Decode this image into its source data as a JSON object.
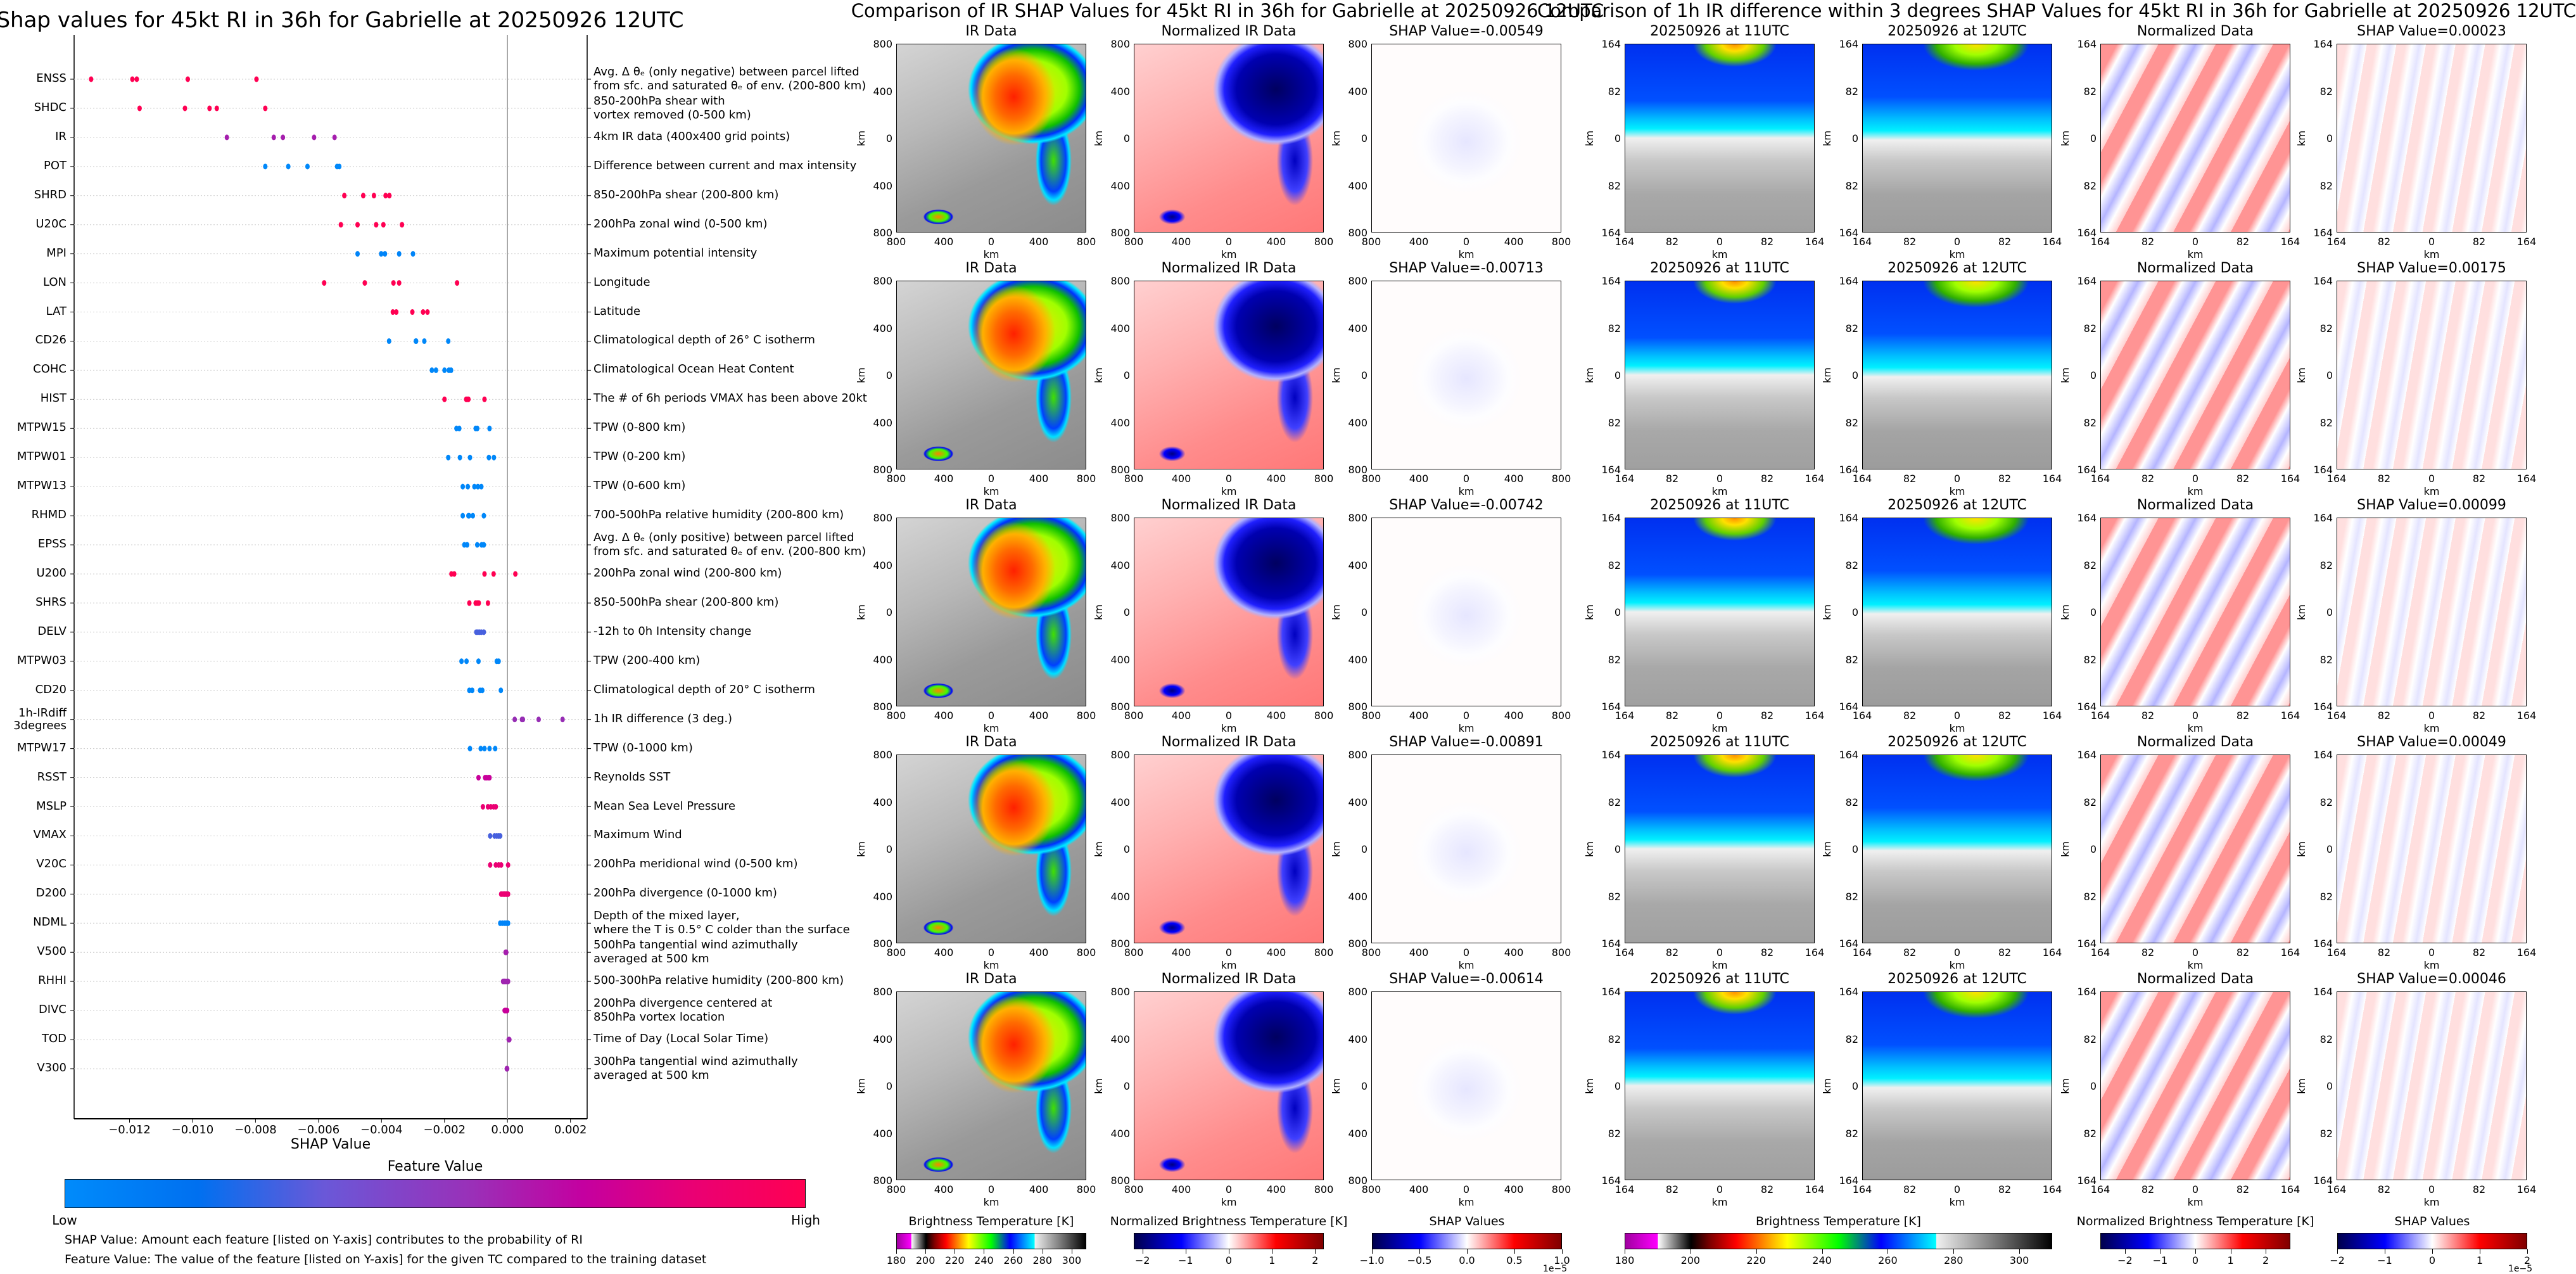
{
  "left": {
    "title": "Shap values for 45kt RI in 36h for Gabrielle at 20250926 12UTC",
    "xlabel": "SHAP Value",
    "xticks": [
      -0.012,
      -0.01,
      -0.008,
      -0.006,
      -0.004,
      -0.002,
      0.0,
      0.002
    ],
    "xtick_labels": [
      "−0.012",
      "−0.010",
      "−0.008",
      "−0.006",
      "−0.004",
      "−0.002",
      "0.000",
      "0.002"
    ],
    "xlim": [
      -0.01376,
      0.00253
    ],
    "features": [
      {
        "name": "ENSS",
        "desc": "Avg. Δ θₑ (only negative) between parcel lifted\nfrom sfc. and saturated θₑ of env. (200-800 km)",
        "fv": 1.0,
        "values": [
          -0.01322,
          -0.01191,
          -0.01177,
          -0.01015,
          -0.00797
        ]
      },
      {
        "name": "SHDC",
        "desc": "850-200hPa shear with\nvortex removed (0-500 km)",
        "fv": 1.0,
        "values": [
          -0.01168,
          -0.01024,
          -0.00946,
          -0.00923,
          -0.00769
        ]
      },
      {
        "name": "IR",
        "desc": "4km IR data (400x400 grid points)",
        "fv": 0.6,
        "values": [
          -0.00891,
          -0.00742,
          -0.00713,
          -0.00614,
          -0.00549
        ]
      },
      {
        "name": "POT",
        "desc": "Difference between current and max intensity",
        "fv": 0.02,
        "values": [
          -0.00769,
          -0.00696,
          -0.00635,
          -0.00541,
          -0.00534
        ]
      },
      {
        "name": "SHRD",
        "desc": "850-200hPa shear (200-800 km)",
        "fv": 1.0,
        "values": [
          -0.00518,
          -0.00458,
          -0.00424,
          -0.00387,
          -0.00375
        ]
      },
      {
        "name": "U20C",
        "desc": "200hPa zonal wind (0-500 km)",
        "fv": 1.0,
        "values": [
          -0.00529,
          -0.00476,
          -0.00417,
          -0.00394,
          -0.00335
        ]
      },
      {
        "name": "MPI",
        "desc": "Maximum potential intensity",
        "fv": 0.05,
        "values": [
          -0.00476,
          -0.00401,
          -0.00389,
          -0.00344,
          -0.003
        ]
      },
      {
        "name": "LON",
        "desc": "Longitude",
        "fv": 1.0,
        "values": [
          -0.00582,
          -0.00453,
          -0.00362,
          -0.00344,
          -0.0016
        ]
      },
      {
        "name": "LAT",
        "desc": "Latitude",
        "fv": 1.0,
        "values": [
          -0.00364,
          -0.00353,
          -0.00302,
          -0.00268,
          -0.00254
        ]
      },
      {
        "name": "CD26",
        "desc": "Climatological depth of 26° C isotherm",
        "fv": 0.03,
        "values": [
          -0.00376,
          -0.00291,
          -0.0029,
          -0.00264,
          -0.00188
        ]
      },
      {
        "name": "COHC",
        "desc": "Climatological Ocean Heat Content",
        "fv": 0.03,
        "values": [
          -0.0024,
          -0.00227,
          -0.002,
          -0.00186,
          -0.00179
        ]
      },
      {
        "name": "HIST",
        "desc": "The # of 6h periods VMAX has been above 20kt",
        "fv": 1.0,
        "values": [
          -0.002,
          -0.00131,
          -0.00128,
          -0.00124,
          -0.00073
        ]
      },
      {
        "name": "MTPW15",
        "desc": "TPW (0-800 km)",
        "fv": 0.03,
        "values": [
          -0.00162,
          -0.00153,
          -0.00101,
          -0.00096,
          -0.00057
        ]
      },
      {
        "name": "MTPW01",
        "desc": "TPW (0-200 km)",
        "fv": 0.03,
        "values": [
          -0.00188,
          -0.00151,
          -0.00119,
          -0.00059,
          -0.00043
        ]
      },
      {
        "name": "MTPW13",
        "desc": "TPW (0-600 km)",
        "fv": 0.03,
        "values": [
          -0.00142,
          -0.00126,
          -0.00105,
          -0.00094,
          -0.00083
        ]
      },
      {
        "name": "RHMD",
        "desc": "700-500hPa relative humidity (200-800 km)",
        "fv": 0.03,
        "values": [
          -0.00142,
          -0.00124,
          -0.00122,
          -0.0011,
          -0.00075
        ]
      },
      {
        "name": "EPSS",
        "desc": "Avg. Δ θₑ (only positive) between parcel lifted\nfrom sfc. and saturated θₑ of env. (200-800 km)",
        "fv": 0.03,
        "values": [
          -0.00137,
          -0.00128,
          -0.00096,
          -0.00082,
          -0.00075
        ]
      },
      {
        "name": "U200",
        "desc": "200hPa zonal wind (200-800 km)",
        "fv": 1.0,
        "values": [
          -0.00178,
          -0.00169,
          -0.00073,
          -0.00044,
          0.00025
        ]
      },
      {
        "name": "SHRS",
        "desc": "850-500hPa shear (200-800 km)",
        "fv": 1.0,
        "values": [
          -0.00121,
          -0.00101,
          -0.00096,
          -0.00091,
          -0.00062
        ]
      },
      {
        "name": "DELV",
        "desc": "-12h to 0h Intensity change",
        "fv": 0.3,
        "values": [
          -0.00099,
          -0.00094,
          -0.00089,
          -0.00083,
          -0.00075
        ]
      },
      {
        "name": "MTPW03",
        "desc": "TPW (200-400 km)",
        "fv": 0.03,
        "values": [
          -0.00146,
          -0.0013,
          -0.00092,
          -0.00034,
          -0.00028
        ]
      },
      {
        "name": "CD20",
        "desc": "Climatological depth of 20° C isotherm",
        "fv": 0.03,
        "values": [
          -0.00121,
          -0.00112,
          -0.00087,
          -0.0008,
          -0.00021
        ]
      },
      {
        "name": "1h-IRdiff\n3degrees",
        "desc": "1h IR difference (3 deg.)",
        "fv": 0.55,
        "values": [
          0.00023,
          0.00046,
          0.00049,
          0.00099,
          0.00175
        ]
      },
      {
        "name": "MTPW17",
        "desc": "TPW (0-1000 km)",
        "fv": 0.03,
        "values": [
          -0.00119,
          -0.00085,
          -0.00073,
          -0.00057,
          -0.00039
        ]
      },
      {
        "name": "RSST",
        "desc": "Reynolds SST",
        "fv": 0.72,
        "values": [
          -0.00092,
          -0.00071,
          -0.00066,
          -0.0006,
          -0.00057
        ]
      },
      {
        "name": "MSLP",
        "desc": "Mean Sea Level Pressure",
        "fv": 0.85,
        "values": [
          -0.00078,
          -0.00062,
          -0.00053,
          -0.00044,
          -0.00037
        ]
      },
      {
        "name": "VMAX",
        "desc": "Maximum Wind",
        "fv": 0.3,
        "values": [
          -0.00055,
          -0.00041,
          -0.00034,
          -0.00028,
          -0.00023
        ]
      },
      {
        "name": "V20C",
        "desc": "200hPa meridional wind (0-500 km)",
        "fv": 0.85,
        "values": [
          -0.00055,
          -0.00037,
          -0.00028,
          -0.0002,
          2e-05
        ]
      },
      {
        "name": "D200",
        "desc": "200hPa divergence (0-1000 km)",
        "fv": 0.85,
        "values": [
          -0.0002,
          -0.00014,
          -9e-05,
          -4e-05,
          2e-05
        ]
      },
      {
        "name": "NDML",
        "desc": "Depth of the mixed layer,\nwhere the T is 0.5° C colder than the surface",
        "fv": 0.05,
        "values": [
          -0.00023,
          -0.00016,
          -9e-05,
          -4e-05,
          2e-05
        ]
      },
      {
        "name": "V500",
        "desc": "500hPa tangential wind azimuthally\naveraged at 500 km",
        "fv": 0.6,
        "values": [
          -6e-05,
          -5e-05,
          -5e-05,
          -4e-05,
          -4e-05
        ]
      },
      {
        "name": "RHHI",
        "desc": "500-300hPa relative humidity (200-800 km)",
        "fv": 0.58,
        "values": [
          -0.00014,
          -0.0001,
          -5e-05,
          0.0,
          2e-05
        ]
      },
      {
        "name": "DIVC",
        "desc": "200hPa divergence centered at\n850hPa vortex location",
        "fv": 0.72,
        "values": [
          -9e-05,
          -7e-05,
          -5e-05,
          -3e-05,
          -1e-05
        ]
      },
      {
        "name": "TOD",
        "desc": "Time of Day (Local Solar Time)",
        "fv": 0.58,
        "values": [
          4e-05,
          5e-05,
          6e-05,
          5e-05,
          4e-05
        ]
      },
      {
        "name": "V300",
        "desc": "300hPa tangential wind azimuthally\naveraged at 500 km",
        "fv": 0.58,
        "values": [
          -2e-05,
          -2e-05,
          -2e-05,
          -1e-05,
          -1e-05
        ]
      }
    ],
    "colorbar": {
      "title": "Feature Value",
      "low": "Low",
      "high": "High",
      "low_color": "#008bfb",
      "high_color": "#ff0052"
    },
    "notes": [
      "SHAP Value: Amount each feature [listed on Y-axis] contributes to the probability of RI",
      "Feature Value: The value of the feature [listed on Y-axis] for the given TC compared to the training dataset"
    ]
  },
  "chart_data": {
    "type": "scatter",
    "title": "Shap values for 45kt RI in 36h for Gabrielle at 20250926 12UTC",
    "xlabel": "SHAP Value",
    "ylabel": "",
    "xlim": [
      -0.01376,
      0.00253
    ],
    "note": "per-feature SHAP values listed in left.features[].values; color = feature value (Low to High)"
  },
  "ir_section": {
    "title": "Comparison of IR SHAP Values for 45kt RI in 36h for Gabrielle at 20250926 12UTC",
    "rows": [
      {
        "titles": [
          "IR Data",
          "Normalized IR Data",
          "SHAP Value=-0.00549"
        ]
      },
      {
        "titles": [
          "IR Data",
          "Normalized IR Data",
          "SHAP Value=-0.00713"
        ]
      },
      {
        "titles": [
          "IR Data",
          "Normalized IR Data",
          "SHAP Value=-0.00742"
        ]
      },
      {
        "titles": [
          "IR Data",
          "Normalized IR Data",
          "SHAP Value=-0.00891"
        ]
      },
      {
        "titles": [
          "IR Data",
          "Normalized IR Data",
          "SHAP Value=-0.00614"
        ]
      }
    ],
    "yticks": [
      "800",
      "400",
      "0",
      "400",
      "800"
    ],
    "xticks": [
      "800",
      "400",
      "0",
      "400",
      "800"
    ],
    "axis_label": "km",
    "colorbars": [
      {
        "label": "Brightness Temperature [K]",
        "range": [
          180,
          310
        ],
        "ticks": [
          180,
          200,
          220,
          240,
          260,
          280,
          300
        ],
        "scale": ""
      },
      {
        "label": "Normalized Brightness Temperature [K]",
        "range": [
          -2.2,
          2.2
        ],
        "ticks": [
          -2,
          -1,
          0,
          1,
          2
        ],
        "tick_labels": [
          "−2",
          "−1",
          "0",
          "1",
          "2"
        ],
        "scale": ""
      },
      {
        "label": "SHAP Values",
        "range": [
          -1,
          1
        ],
        "ticks": [
          -1,
          -0.5,
          0,
          0.5,
          1
        ],
        "tick_labels": [
          "−1.0",
          "−0.5",
          "0.0",
          "0.5",
          "1.0"
        ],
        "scale": "1e−5"
      }
    ]
  },
  "diff_section": {
    "title": "Comparison of 1h IR difference within 3 degrees SHAP Values for 45kt RI in 36h for Gabrielle at 20250926 12UTC",
    "rows": [
      {
        "titles": [
          "20250926 at 11UTC",
          "20250926 at 12UTC",
          "Normalized Data",
          "SHAP Value=0.00023"
        ]
      },
      {
        "titles": [
          "20250926 at 11UTC",
          "20250926 at 12UTC",
          "Normalized Data",
          "SHAP Value=0.00175"
        ]
      },
      {
        "titles": [
          "20250926 at 11UTC",
          "20250926 at 12UTC",
          "Normalized Data",
          "SHAP Value=0.00099"
        ]
      },
      {
        "titles": [
          "20250926 at 11UTC",
          "20250926 at 12UTC",
          "Normalized Data",
          "SHAP Value=0.00049"
        ]
      },
      {
        "titles": [
          "20250926 at 11UTC",
          "20250926 at 12UTC",
          "Normalized Data",
          "SHAP Value=0.00046"
        ]
      }
    ],
    "yticks": [
      "164",
      "82",
      "0",
      "82",
      "164"
    ],
    "xticks": [
      "164",
      "82",
      "0",
      "82",
      "164"
    ],
    "axis_label": "km",
    "colorbars": [
      {
        "label": "Brightness Temperature [K]",
        "range": [
          180,
          310
        ],
        "ticks": [
          180,
          200,
          220,
          240,
          260,
          280,
          300
        ],
        "scale": ""
      },
      {
        "label": "Normalized Brightness Temperature [K]",
        "range": [
          -2.7,
          2.7
        ],
        "ticks": [
          -2,
          -1,
          0,
          1,
          2
        ],
        "tick_labels": [
          "−2",
          "−1",
          "0",
          "1",
          "2"
        ],
        "scale": ""
      },
      {
        "label": "SHAP Values",
        "range": [
          -2,
          2
        ],
        "ticks": [
          -2,
          -1,
          0,
          1,
          2
        ],
        "tick_labels": [
          "−2",
          "−1",
          "0",
          "1",
          "2"
        ],
        "scale": "1e−5"
      }
    ]
  }
}
